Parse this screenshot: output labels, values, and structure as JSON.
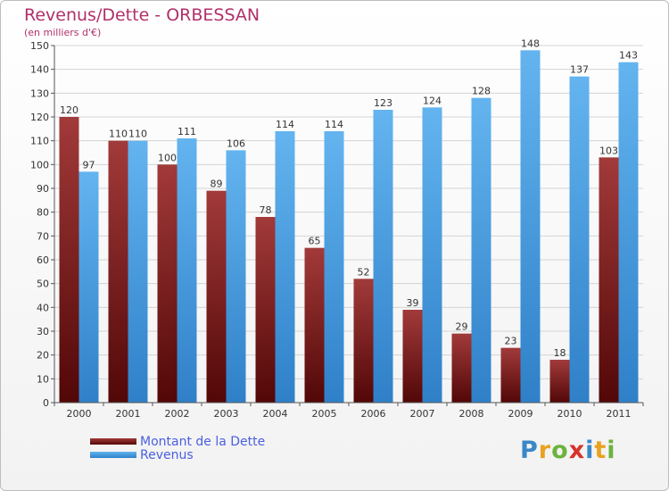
{
  "logo_text": "Proxiti",
  "chart_data": {
    "type": "bar",
    "title": "Revenus/Dette - ORBESSAN",
    "subtitle": "(en milliers d'€)",
    "categories": [
      "2000",
      "2001",
      "2002",
      "2003",
      "2004",
      "2005",
      "2006",
      "2007",
      "2008",
      "2009",
      "2010",
      "2011"
    ],
    "series": [
      {
        "name": "Montant de la Dette",
        "color": "#7a1a1a",
        "values": [
          120,
          110,
          100,
          89,
          78,
          65,
          52,
          39,
          29,
          23,
          18,
          103
        ]
      },
      {
        "name": "Revenus",
        "color": "#4aa3e8",
        "values": [
          97,
          110,
          111,
          106,
          114,
          114,
          123,
          124,
          128,
          148,
          137,
          143
        ]
      }
    ],
    "ylim": [
      0,
      150
    ],
    "yticks": [
      0,
      10,
      20,
      30,
      40,
      50,
      60,
      70,
      80,
      90,
      100,
      110,
      120,
      130,
      140,
      150
    ],
    "grid": true,
    "legend_position": "bottom-left"
  }
}
